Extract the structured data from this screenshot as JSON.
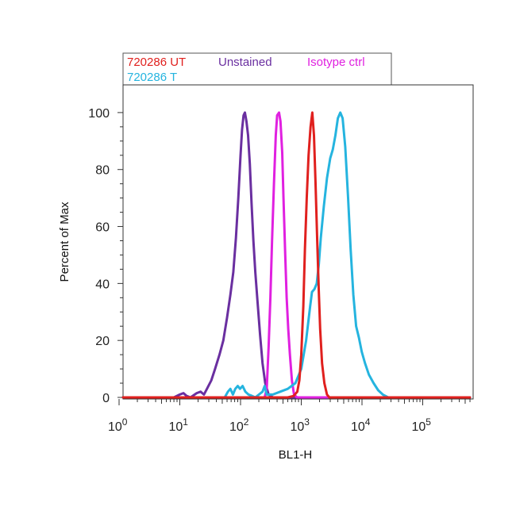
{
  "chart_data": {
    "type": "line",
    "subtype": "flow-cytometry-histogram",
    "title": "",
    "xlabel": "BL1-H",
    "ylabel": "Percent of Max",
    "x_scale": "log",
    "xlim": [
      1,
      600000
    ],
    "ylim": [
      0,
      110
    ],
    "x_tick_exponents": [
      0,
      1,
      2,
      3,
      4,
      5
    ],
    "x_tick_base": "10",
    "y_ticks": [
      0,
      20,
      40,
      60,
      80,
      100
    ],
    "grid": false,
    "legend_position": "top, above plot",
    "legend": [
      {
        "label": "720286 UT",
        "color": "#e0201e"
      },
      {
        "label": "Unstained",
        "color": "#6a2fa0"
      },
      {
        "label": "Isotype ctrl",
        "color": "#e020e0"
      },
      {
        "label": "720286 T",
        "color": "#25b4df"
      }
    ],
    "series": [
      {
        "name": "Unstained",
        "color": "#6a2fa0",
        "points": [
          [
            1,
            0
          ],
          [
            8,
            0
          ],
          [
            10,
            1
          ],
          [
            11.5,
            1.5
          ],
          [
            13,
            0.5
          ],
          [
            15,
            0
          ],
          [
            19,
            1.5
          ],
          [
            22,
            2
          ],
          [
            25,
            1
          ],
          [
            28,
            3
          ],
          [
            33,
            6
          ],
          [
            38,
            10
          ],
          [
            45,
            15
          ],
          [
            52,
            20
          ],
          [
            60,
            28
          ],
          [
            68,
            36
          ],
          [
            76,
            44
          ],
          [
            84,
            56
          ],
          [
            92,
            70
          ],
          [
            100,
            85
          ],
          [
            106,
            94
          ],
          [
            112,
            99
          ],
          [
            118,
            100
          ],
          [
            125,
            97
          ],
          [
            133,
            92
          ],
          [
            142,
            82
          ],
          [
            152,
            68
          ],
          [
            163,
            55
          ],
          [
            175,
            44
          ],
          [
            190,
            34
          ],
          [
            210,
            22
          ],
          [
            230,
            12
          ],
          [
            255,
            5
          ],
          [
            290,
            1
          ],
          [
            340,
            0
          ],
          [
            600000,
            0
          ]
        ]
      },
      {
        "name": "Isotype ctrl",
        "color": "#e020e0",
        "points": [
          [
            1,
            0
          ],
          [
            250,
            0
          ],
          [
            270,
            3
          ],
          [
            290,
            18
          ],
          [
            310,
            35
          ],
          [
            330,
            55
          ],
          [
            355,
            75
          ],
          [
            380,
            92
          ],
          [
            400,
            99
          ],
          [
            430,
            100
          ],
          [
            455,
            97
          ],
          [
            485,
            86
          ],
          [
            510,
            70
          ],
          [
            545,
            50
          ],
          [
            575,
            35
          ],
          [
            610,
            24
          ],
          [
            650,
            15
          ],
          [
            700,
            6
          ],
          [
            760,
            1
          ],
          [
            850,
            0
          ],
          [
            600000,
            0
          ]
        ]
      },
      {
        "name": "720286 T",
        "color": "#25b4df",
        "points": [
          [
            1,
            0
          ],
          [
            55,
            0
          ],
          [
            62,
            2
          ],
          [
            68,
            3
          ],
          [
            75,
            1
          ],
          [
            82,
            3
          ],
          [
            90,
            4
          ],
          [
            98,
            3
          ],
          [
            108,
            4
          ],
          [
            120,
            2
          ],
          [
            135,
            1
          ],
          [
            155,
            0.5
          ],
          [
            175,
            0
          ],
          [
            230,
            2
          ],
          [
            250,
            4
          ],
          [
            270,
            1
          ],
          [
            340,
            1
          ],
          [
            450,
            2
          ],
          [
            600,
            3
          ],
          [
            800,
            5
          ],
          [
            1000,
            10
          ],
          [
            1200,
            20
          ],
          [
            1400,
            32
          ],
          [
            1500,
            37
          ],
          [
            1650,
            38
          ],
          [
            1800,
            40
          ],
          [
            1950,
            47
          ],
          [
            2100,
            56
          ],
          [
            2350,
            67
          ],
          [
            2650,
            77
          ],
          [
            3000,
            84
          ],
          [
            3300,
            87
          ],
          [
            3650,
            92
          ],
          [
            4000,
            98
          ],
          [
            4400,
            100
          ],
          [
            4800,
            98
          ],
          [
            5300,
            88
          ],
          [
            5900,
            70
          ],
          [
            6500,
            52
          ],
          [
            7200,
            36
          ],
          [
            8000,
            25
          ],
          [
            8900,
            21
          ],
          [
            9900,
            16
          ],
          [
            11200,
            12
          ],
          [
            13000,
            8
          ],
          [
            15500,
            5
          ],
          [
            18500,
            2.5
          ],
          [
            22000,
            1
          ],
          [
            27000,
            0
          ],
          [
            600000,
            0
          ]
        ]
      },
      {
        "name": "720286 UT",
        "color": "#e0201e",
        "points": [
          [
            1,
            0
          ],
          [
            600,
            0
          ],
          [
            750,
            0.5
          ],
          [
            860,
            2
          ],
          [
            930,
            6
          ],
          [
            1000,
            15
          ],
          [
            1080,
            32
          ],
          [
            1150,
            52
          ],
          [
            1230,
            70
          ],
          [
            1320,
            85
          ],
          [
            1420,
            95
          ],
          [
            1520,
            100
          ],
          [
            1620,
            92
          ],
          [
            1720,
            75
          ],
          [
            1830,
            55
          ],
          [
            1940,
            38
          ],
          [
            2050,
            24
          ],
          [
            2200,
            12
          ],
          [
            2400,
            5
          ],
          [
            2650,
            1
          ],
          [
            2900,
            0
          ],
          [
            600000,
            0
          ]
        ]
      }
    ]
  }
}
